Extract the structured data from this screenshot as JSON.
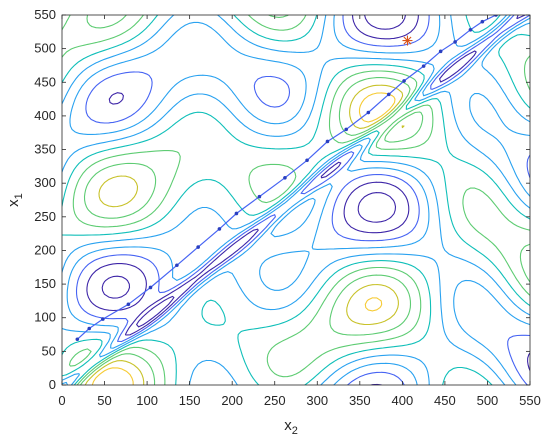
{
  "chart_data": {
    "type": "contour",
    "title": "",
    "xlabel": {
      "base": "x",
      "sub": "2"
    },
    "ylabel": {
      "base": "x",
      "sub": "1"
    },
    "xlim": [
      0,
      550
    ],
    "ylim": [
      0,
      550
    ],
    "xticks": [
      "0",
      "50",
      "100",
      "150",
      "200",
      "250",
      "300",
      "350",
      "400",
      "450",
      "500",
      "550"
    ],
    "yticks": [
      "0",
      "50",
      "100",
      "150",
      "200",
      "250",
      "300",
      "350",
      "400",
      "450",
      "500",
      "550"
    ],
    "grid": false,
    "colormap": [
      "#3e26a8",
      "#4764f3",
      "#2aa2f0",
      "#10bfb9",
      "#5ecc73",
      "#c8c22a",
      "#f6cb35"
    ],
    "marker": {
      "symbol": "*",
      "x2": 406,
      "x1": 512,
      "color": "#d95319"
    },
    "optimization_path": [
      [
        18,
        68
      ],
      [
        32,
        84
      ],
      [
        48,
        98
      ],
      [
        78,
        120
      ],
      [
        104,
        145
      ],
      [
        135,
        178
      ],
      [
        160,
        205
      ],
      [
        185,
        232
      ],
      [
        205,
        255
      ],
      [
        232,
        280
      ],
      [
        262,
        308
      ],
      [
        288,
        334
      ],
      [
        312,
        362
      ],
      [
        334,
        380
      ],
      [
        360,
        405
      ],
      [
        384,
        432
      ],
      [
        402,
        452
      ],
      [
        425,
        474
      ],
      [
        445,
        496
      ],
      [
        462,
        510
      ],
      [
        480,
        528
      ],
      [
        494,
        540
      ],
      [
        510,
        550
      ]
    ]
  }
}
